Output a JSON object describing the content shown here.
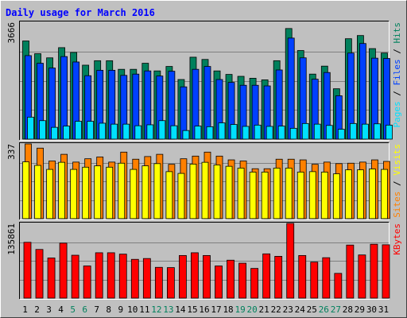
{
  "chart_data": {
    "type": "bar",
    "title": "Daily usage for March 2016",
    "categories": [
      "1",
      "2",
      "3",
      "4",
      "5",
      "6",
      "7",
      "8",
      "9",
      "10",
      "11",
      "12",
      "13",
      "14",
      "15",
      "16",
      "17",
      "18",
      "19",
      "20",
      "21",
      "22",
      "23",
      "24",
      "25",
      "26",
      "27",
      "28",
      "29",
      "30",
      "31"
    ],
    "weekend_categories": [
      "5",
      "6",
      "12",
      "13",
      "19",
      "20",
      "26",
      "27"
    ],
    "colors": {
      "hits": "#00805c",
      "files": "#0040ff",
      "pages": "#00e0ff",
      "visits": "#ffff00",
      "sites": "#ff8000",
      "kbytes": "#ff0000",
      "weekday_label": "#000000",
      "weekend_label": "#00805c",
      "title": "#0000ff",
      "panel_bg": "#c0c0c0"
    },
    "panels": [
      {
        "name": "hits-files-pages",
        "max_label": "3666",
        "ylim": [
          0,
          3666
        ],
        "axis_label_parts": [
          {
            "text": "Pages",
            "color": "#00e0ff"
          },
          {
            "text": " / ",
            "color": "#000000"
          },
          {
            "text": "Files",
            "color": "#0040ff"
          },
          {
            "text": " / ",
            "color": "#000000"
          },
          {
            "text": "Hits",
            "color": "#00805c"
          }
        ],
        "series": [
          {
            "name": "Hits",
            "values": [
              3080,
              2680,
              2550,
              2870,
              2720,
              2320,
              2460,
              2460,
              2190,
              2190,
              2380,
              2140,
              2280,
              1870,
              2570,
              2500,
              2140,
              2030,
              1970,
              1910,
              1860,
              2460,
              3470,
              2780,
              2040,
              2290,
              1580,
              3150,
              3250,
              2840,
              2700
            ]
          },
          {
            "name": "Files",
            "values": [
              2620,
              2380,
              2230,
              2590,
              2420,
              1990,
              2160,
              2160,
              2000,
              2040,
              2140,
              1980,
              2130,
              1640,
              2190,
              2280,
              1870,
              1780,
              1690,
              1690,
              1670,
              2170,
              3170,
              2550,
              1880,
              2090,
              1360,
              2700,
              3000,
              2540,
              2530
            ]
          },
          {
            "name": "Pages",
            "values": [
              690,
              580,
              370,
              410,
              560,
              560,
              500,
              470,
              470,
              420,
              450,
              580,
              420,
              270,
              410,
              390,
              510,
              460,
              400,
              440,
              400,
              410,
              340,
              490,
              470,
              430,
              310,
              490,
              470,
              480,
              440
            ]
          }
        ]
      },
      {
        "name": "sites-visits",
        "max_label": "337",
        "ylim": [
          0,
          337
        ],
        "axis_label_parts": [
          {
            "text": "Sites",
            "color": "#ff8000"
          },
          {
            "text": " / ",
            "color": "#000000"
          },
          {
            "text": "Visits",
            "color": "#ffff00"
          }
        ],
        "series": [
          {
            "name": "Sites",
            "values": [
              337,
              318,
              260,
              290,
              255,
              270,
              278,
              255,
              300,
              268,
              280,
              290,
              245,
              270,
              282,
              300,
              282,
              265,
              260,
              225,
              225,
              268,
              268,
              265,
              245,
              255,
              248,
              250,
              255,
              265,
              258
            ]
          },
          {
            "name": "Visits",
            "values": [
              256,
              240,
              222,
              254,
              222,
              232,
              238,
              232,
              250,
              222,
              238,
              248,
              212,
              204,
              246,
              254,
              242,
              236,
              228,
              210,
              210,
              228,
              228,
              210,
              212,
              210,
              202,
              220,
              220,
              224,
              222
            ]
          }
        ]
      },
      {
        "name": "kbytes",
        "max_label": "135861",
        "ylim": [
          0,
          135861
        ],
        "axis_label_parts": [
          {
            "text": "KBytes",
            "color": "#ff0000"
          }
        ],
        "series": [
          {
            "name": "KBytes",
            "values": [
              101500,
              88500,
              73000,
              100000,
              78000,
              58500,
              82500,
              82500,
              80000,
              70500,
              72000,
              56000,
              55500,
              77500,
              82500,
              77500,
              58500,
              69000,
              63500,
              54000,
              80500,
              76000,
              135861,
              77500,
              65500,
              73500,
              45000,
              96500,
              78500,
              98000,
              97000
            ]
          }
        ]
      }
    ]
  }
}
